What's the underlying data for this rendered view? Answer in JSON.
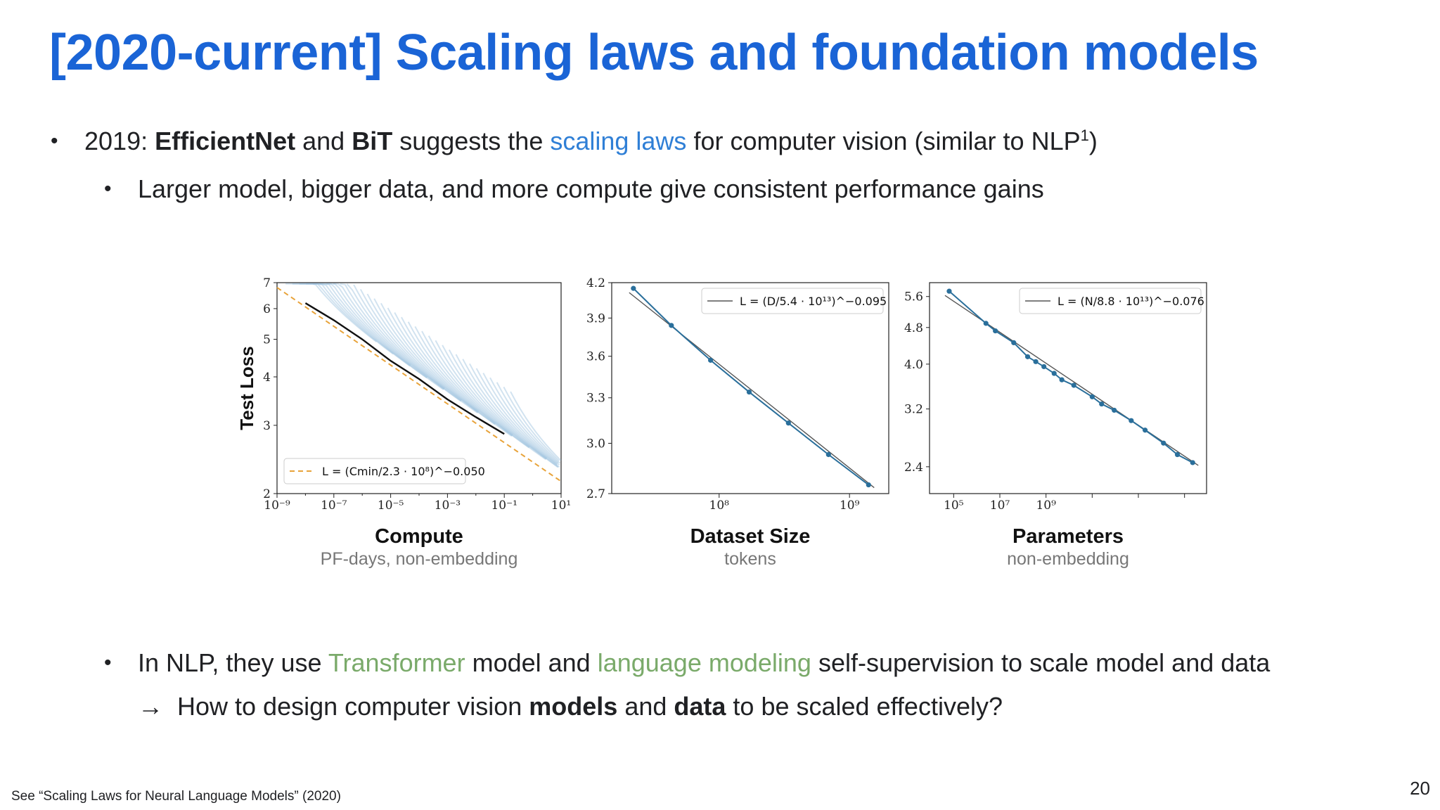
{
  "title": "[2020-current] Scaling laws and foundation models",
  "bullets": {
    "b1": {
      "year": "2019: ",
      "efficientnet": "EfficientNet",
      "and": " and ",
      "bit": "BiT",
      "suggests": " suggests the ",
      "scaling_laws": "scaling laws",
      "rest": " for computer vision (similar to NLP",
      "sup": "1",
      "close": ")"
    },
    "b2": "Larger model, bigger data, and more compute give consistent performance gains",
    "b3": {
      "pre": "In NLP, they use ",
      "transformer": "Transformer",
      "mid": " model and ",
      "lm": "language modeling",
      "post": " self-supervision to scale model and data"
    },
    "b4": {
      "arrow": "→",
      "pre": "How to design computer vision ",
      "models": "models",
      "mid": " and ",
      "data": "data",
      "post": " to be scaled effectively?"
    }
  },
  "footnote": "See “Scaling Laws for Neural Language Models” (2020)",
  "page_number": "20",
  "colors": {
    "title": "#1a64d6",
    "highlight_blue": "#2f7fd6",
    "highlight_green": "#7aaa6a",
    "fit_orange": "#e8a33a",
    "series_blue": "#2a6f9b"
  },
  "chart_data": [
    {
      "type": "line",
      "title": "Compute",
      "subtitle": "PF-days, non-embedding",
      "ylabel": "Test Loss",
      "xscale": "log",
      "yscale": "log",
      "xlim": [
        1e-09,
        10
      ],
      "ylim": [
        2,
        7
      ],
      "xticks": [
        "10⁻⁹",
        "10⁻⁷",
        "10⁻⁵",
        "10⁻³",
        "10⁻¹",
        "10¹"
      ],
      "yticks": [
        "2",
        "3",
        "4",
        "5",
        "6",
        "7"
      ],
      "legend": "L = (Cmin/2.3 · 10⁸)^−0.050",
      "legend_position": "bottom-left",
      "series": [
        {
          "name": "",
          "x": [
            1e-08,
            1e-07,
            1e-06,
            1e-05,
            0.0001,
            0.001,
            0.01,
            0.1
          ],
          "y": [
            6.2,
            5.6,
            5.0,
            4.4,
            3.95,
            3.5,
            3.15,
            2.85
          ]
        }
      ]
    },
    {
      "type": "line",
      "title": "Dataset Size",
      "subtitle": "tokens",
      "xscale": "log",
      "yscale": "log",
      "xlim": [
        15000000.0,
        2000000000.0
      ],
      "ylim": [
        2.7,
        4.2
      ],
      "xticks": [
        "10⁸",
        "10⁹"
      ],
      "yticks": [
        "2.7",
        "3.0",
        "3.3",
        "3.6",
        "3.9",
        "4.2"
      ],
      "legend": "L = (D/5.4 · 10¹³)^−0.095",
      "legend_position": "top-right",
      "series": [
        {
          "name": "",
          "x": [
            22000000.0,
            43000000.0,
            86000000.0,
            170000000.0,
            340000000.0,
            690000000.0,
            1400000000.0
          ],
          "y": [
            4.15,
            3.84,
            3.57,
            3.34,
            3.13,
            2.93,
            2.75
          ]
        }
      ]
    },
    {
      "type": "line",
      "title": "Parameters",
      "subtitle": "non-embedding",
      "xscale": "log",
      "yscale": "log",
      "xlim": [
        3000.0,
        3000000000.0
      ],
      "ylim": [
        2.1,
        6.0
      ],
      "xticks": [
        "10⁵",
        "10⁷",
        "10⁹"
      ],
      "yticks": [
        "2.4",
        "3.2",
        "4.0",
        "4.8",
        "5.6"
      ],
      "legend": "L = (N/8.8 · 10¹³)^−0.076",
      "legend_position": "top-right",
      "series": [
        {
          "name": "",
          "x": [
            8000.0,
            50000.0,
            80000.0,
            200000.0,
            400000.0,
            600000.0,
            900000.0,
            1500000.0,
            2200000.0,
            4000000.0,
            10000000.0,
            16000000.0,
            30000000.0,
            70000000.0,
            140000000.0,
            350000000.0,
            700000000.0,
            1500000000.0
          ],
          "y": [
            5.75,
            4.9,
            4.72,
            4.45,
            4.15,
            4.05,
            3.95,
            3.82,
            3.7,
            3.6,
            3.4,
            3.28,
            3.18,
            3.02,
            2.88,
            2.7,
            2.55,
            2.45
          ]
        }
      ]
    }
  ]
}
